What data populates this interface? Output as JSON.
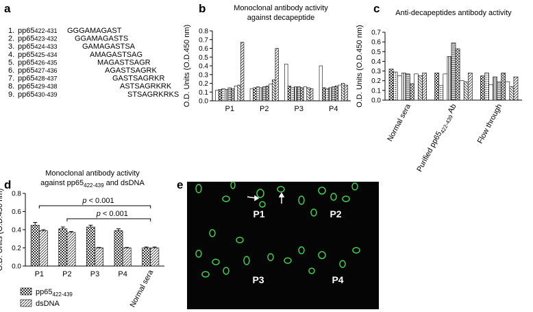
{
  "panel_labels": [
    "a",
    "b",
    "c",
    "d",
    "e"
  ],
  "peptide_list": [
    {
      "index": "1.",
      "prefix": "pp65",
      "sub": "422-431",
      "sequence": "GGGAMAGAST"
    },
    {
      "index": "2.",
      "prefix": "pp65",
      "sub": "423-432",
      "sequence": "GGAMAGASTS"
    },
    {
      "index": "3.",
      "prefix": "pp65",
      "sub": "424-433",
      "sequence": "GAMAGASTSA"
    },
    {
      "index": "4.",
      "prefix": "pp65",
      "sub": "425-434",
      "sequence": "AMAGASTSAG"
    },
    {
      "index": "5.",
      "prefix": "pp65",
      "sub": "426-435",
      "sequence": "MAGASTSAGR"
    },
    {
      "index": "6.",
      "prefix": "pp65",
      "sub": "427-436",
      "sequence": "AGASTSAGRK"
    },
    {
      "index": "7.",
      "prefix": "pp65",
      "sub": "428-437",
      "sequence": "GASTSAGRKR"
    },
    {
      "index": "8.",
      "prefix": "pp65",
      "sub": "429-438",
      "sequence": "ASTSAGRKRK"
    },
    {
      "index": "9.",
      "prefix": "pp65",
      "sub": "430-439",
      "sequence": "STSAGRKRKS"
    }
  ],
  "chart_data": [
    {
      "type": "bar",
      "title": [
        "Monoclonal antibody activity",
        "against decapeptide"
      ],
      "y_label": "O.D. Units (O.D.450 nm)",
      "categories": [
        "P1",
        "P2",
        "P3",
        "P4"
      ],
      "ylim": [
        0,
        0.8
      ],
      "yticks": [
        {
          "value": 0,
          "label": "0.0"
        },
        0.1,
        0.2,
        0.3,
        0.4,
        0.5,
        0.6,
        0.7,
        0.8
      ],
      "series": [
        {
          "pattern": "white",
          "values": [
            0.12,
            0.14,
            0.42,
            0.4
          ]
        },
        {
          "pattern": "check",
          "values": [
            0.13,
            0.15,
            0.17,
            0.15
          ]
        },
        {
          "pattern": "dots",
          "values": [
            0.14,
            0.16,
            0.15,
            0.14
          ]
        },
        {
          "pattern": "vl",
          "values": [
            0.13,
            0.15,
            0.16,
            0.15
          ]
        },
        {
          "pattern": "hl",
          "values": [
            0.15,
            0.16,
            0.16,
            0.16
          ]
        },
        {
          "pattern": "cross",
          "values": [
            0.14,
            0.17,
            0.15,
            0.17
          ]
        },
        {
          "pattern": "white",
          "values": [
            0.17,
            0.19,
            0.16,
            0.18
          ]
        },
        {
          "pattern": "diag2",
          "values": [
            0.18,
            0.24,
            0.15,
            0.2
          ]
        },
        {
          "pattern": "diag",
          "values": [
            0.67,
            0.6,
            0.14,
            0.18
          ]
        }
      ]
    },
    {
      "type": "bar",
      "title": [
        "Anti-decapeptides antibody activity"
      ],
      "y_label": "O.D. Units (O.D.450 nm)",
      "categories": [
        "Normal sera",
        {
          "text": "Purified pp65",
          "sub": "422-439",
          "post": " Ab"
        },
        "Flow through"
      ],
      "ylim": [
        0,
        0.7
      ],
      "yticks": [
        {
          "value": 0,
          "label": "0.0"
        },
        0.1,
        0.2,
        0.3,
        0.4,
        0.5,
        0.6,
        0.7
      ],
      "series": [
        {
          "pattern": "check",
          "values": [
            0.32,
            0.28,
            0.25
          ]
        },
        {
          "pattern": "dots",
          "values": [
            0.29,
            0.15,
            0.28
          ]
        },
        {
          "pattern": "white",
          "values": [
            0.25,
            0.27,
            0.16
          ]
        },
        {
          "pattern": "vl",
          "values": [
            0.28,
            0.45,
            0.24
          ]
        },
        {
          "pattern": "hl",
          "values": [
            0.27,
            0.59,
            0.19
          ]
        },
        {
          "pattern": "cross",
          "values": [
            0.17,
            0.53,
            0.28
          ]
        },
        {
          "pattern": "white",
          "values": [
            0.27,
            0.2,
            0.19
          ]
        },
        {
          "pattern": "diag2",
          "values": [
            0.25,
            0.19,
            0.14
          ]
        },
        {
          "pattern": "diag",
          "values": [
            0.28,
            0.28,
            0.24
          ]
        }
      ]
    },
    {
      "type": "bar",
      "title": [
        "Monoclonal antibody activity",
        {
          "text": "against pp65",
          "sub": "422-439",
          "post": " and dsDNA"
        }
      ],
      "y_label": "O.D. Units (O.D.450 nm)",
      "categories": [
        "P1",
        "P2",
        "P3",
        "P4",
        "Normal sera"
      ],
      "ylim": [
        0,
        0.8
      ],
      "yticks": [
        {
          "value": 0,
          "label": "0.0"
        },
        0.2,
        0.4,
        0.6,
        0.8
      ],
      "series": [
        {
          "name": {
            "text": "pp65",
            "sub": "422-439"
          },
          "pattern": "check",
          "values": [
            0.45,
            0.41,
            0.43,
            0.39,
            0.2
          ],
          "errors": [
            0.03,
            0.02,
            0.02,
            0.02,
            0.01
          ]
        },
        {
          "name": "dsDNA",
          "pattern": "diag",
          "values": [
            0.39,
            0.37,
            0.2,
            0.2,
            0.2
          ],
          "errors": [
            0.01,
            0.01,
            0.005,
            0.005,
            0.01
          ]
        }
      ],
      "annotations": [
        {
          "italic": "p",
          "text": " < 0.001"
        },
        {
          "italic": "p",
          "text": " < 0.001"
        }
      ]
    }
  ],
  "image": {
    "labels": [
      "P1",
      "P2",
      "P3",
      "P4"
    ]
  }
}
